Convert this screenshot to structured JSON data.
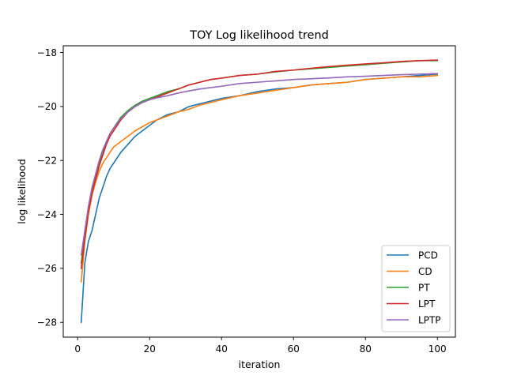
{
  "chart_data": {
    "type": "line",
    "title": "TOY Log likelihood trend",
    "xlabel": "iteration",
    "ylabel": "log likelihood",
    "xlim": [
      -4,
      105
    ],
    "ylim": [
      -28.55,
      -17.75
    ],
    "xticks": [
      0,
      20,
      40,
      60,
      80,
      100
    ],
    "yticks": [
      -28,
      -26,
      -24,
      -22,
      -20,
      -18
    ],
    "xtick_labels": [
      "0",
      "20",
      "40",
      "60",
      "80",
      "100"
    ],
    "ytick_labels": [
      "−28",
      "−26",
      "−24",
      "−22",
      "−20",
      "−18"
    ],
    "grid": false,
    "legend_position": "lower-right",
    "series": [
      {
        "name": "PCD",
        "color": "#1f77b4",
        "x": [
          1,
          2,
          3,
          4,
          5,
          6,
          7,
          8,
          9,
          10,
          12,
          14,
          16,
          18,
          20,
          22,
          25,
          28,
          31,
          34,
          37,
          40,
          45,
          50,
          55,
          60,
          65,
          70,
          75,
          80,
          85,
          90,
          95,
          100
        ],
        "y": [
          -28.0,
          -25.8,
          -25.0,
          -24.6,
          -24.0,
          -23.4,
          -23.0,
          -22.6,
          -22.3,
          -22.1,
          -21.7,
          -21.4,
          -21.1,
          -20.9,
          -20.7,
          -20.5,
          -20.3,
          -20.2,
          -20.0,
          -19.9,
          -19.8,
          -19.7,
          -19.6,
          -19.45,
          -19.35,
          -19.3,
          -19.2,
          -19.15,
          -19.1,
          -19.0,
          -18.95,
          -18.9,
          -18.85,
          -18.8
        ]
      },
      {
        "name": "CD",
        "color": "#ff7f0e",
        "x": [
          1,
          2,
          3,
          4,
          5,
          6,
          7,
          8,
          9,
          10,
          12,
          14,
          16,
          18,
          20,
          22,
          25,
          28,
          31,
          34,
          37,
          40,
          45,
          50,
          55,
          60,
          65,
          70,
          75,
          80,
          85,
          90,
          95,
          100
        ],
        "y": [
          -26.5,
          -25.0,
          -24.0,
          -23.3,
          -22.8,
          -22.4,
          -22.1,
          -21.9,
          -21.7,
          -21.5,
          -21.3,
          -21.1,
          -20.9,
          -20.75,
          -20.6,
          -20.5,
          -20.35,
          -20.2,
          -20.1,
          -19.95,
          -19.85,
          -19.75,
          -19.6,
          -19.5,
          -19.4,
          -19.3,
          -19.2,
          -19.15,
          -19.1,
          -19.0,
          -18.95,
          -18.9,
          -18.9,
          -18.85
        ]
      },
      {
        "name": "PT",
        "color": "#2ca02c",
        "x": [
          1,
          2,
          3,
          4,
          5,
          6,
          7,
          8,
          9,
          10,
          12,
          14,
          16,
          18,
          20,
          22,
          25,
          28,
          31,
          34,
          37,
          40,
          45,
          50,
          55,
          60,
          65,
          70,
          75,
          80,
          85,
          90,
          95,
          100
        ],
        "y": [
          -25.8,
          -24.8,
          -23.8,
          -23.1,
          -22.6,
          -22.1,
          -21.7,
          -21.3,
          -21.0,
          -20.8,
          -20.4,
          -20.15,
          -19.95,
          -19.8,
          -19.7,
          -19.6,
          -19.45,
          -19.35,
          -19.2,
          -19.1,
          -19.0,
          -18.95,
          -18.85,
          -18.8,
          -18.72,
          -18.65,
          -18.6,
          -18.55,
          -18.5,
          -18.45,
          -18.4,
          -18.35,
          -18.3,
          -18.3
        ]
      },
      {
        "name": "LPT",
        "color": "#d62728",
        "x": [
          1,
          2,
          3,
          4,
          5,
          6,
          7,
          8,
          9,
          10,
          12,
          14,
          16,
          18,
          20,
          22,
          25,
          28,
          31,
          34,
          37,
          40,
          45,
          50,
          55,
          60,
          65,
          70,
          75,
          80,
          85,
          90,
          95,
          100
        ],
        "y": [
          -26.0,
          -24.9,
          -23.9,
          -23.2,
          -22.7,
          -22.2,
          -21.8,
          -21.4,
          -21.1,
          -20.9,
          -20.5,
          -20.2,
          -20.0,
          -19.85,
          -19.75,
          -19.65,
          -19.5,
          -19.35,
          -19.2,
          -19.1,
          -19.0,
          -18.95,
          -18.85,
          -18.8,
          -18.7,
          -18.65,
          -18.58,
          -18.52,
          -18.47,
          -18.42,
          -18.38,
          -18.33,
          -18.3,
          -18.28
        ]
      },
      {
        "name": "LPTP",
        "color": "#9467bd",
        "x": [
          1,
          2,
          3,
          4,
          5,
          6,
          7,
          8,
          9,
          10,
          12,
          14,
          16,
          18,
          20,
          22,
          25,
          28,
          31,
          34,
          37,
          40,
          45,
          50,
          55,
          60,
          65,
          70,
          75,
          80,
          85,
          90,
          95,
          100
        ],
        "y": [
          -25.5,
          -24.6,
          -23.7,
          -23.0,
          -22.5,
          -22.0,
          -21.6,
          -21.3,
          -21.0,
          -20.8,
          -20.45,
          -20.2,
          -20.0,
          -19.85,
          -19.75,
          -19.68,
          -19.6,
          -19.5,
          -19.42,
          -19.35,
          -19.3,
          -19.25,
          -19.15,
          -19.1,
          -19.05,
          -19.0,
          -18.97,
          -18.94,
          -18.9,
          -18.88,
          -18.85,
          -18.82,
          -18.8,
          -18.78
        ]
      }
    ]
  }
}
